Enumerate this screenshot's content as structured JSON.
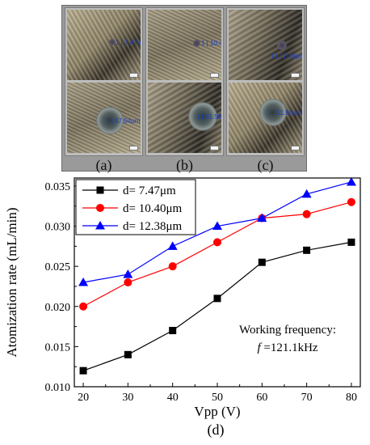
{
  "micrographs": [
    {
      "caption": "(a)",
      "top_label": "1 [ 7.47µm ]",
      "bottom_label": "1 [ 47.04µm ]"
    },
    {
      "caption": "(b)",
      "top_label": "1 [ 10.40µm ]",
      "bottom_label": "1 [ 51.50µm ]"
    },
    {
      "caption": "(c)",
      "top_label": "1 [ 12.38µm ]",
      "bottom_label": "1 [ 51.96µm ]"
    }
  ],
  "chart_data": {
    "type": "line",
    "x": [
      20,
      30,
      40,
      50,
      60,
      70,
      80
    ],
    "xlabel": "Vpp (V)",
    "ylabel": "Atomization rate (mL/min)",
    "xlim": [
      18,
      82
    ],
    "ylim": [
      0.01,
      0.036
    ],
    "xticks": [
      "20",
      "30",
      "40",
      "50",
      "60",
      "70",
      "80"
    ],
    "yticks": [
      "0.010",
      "0.015",
      "0.020",
      "0.025",
      "0.030",
      "0.035"
    ],
    "legend_placement": "top-left",
    "caption": "(d)",
    "annotation_line1": "Working frequency:",
    "annotation_line2_var": "f",
    "annotation_line2_value": " =121.1kHz",
    "series": [
      {
        "name": "d= 7.47μm",
        "marker": "square",
        "color": "#000000",
        "values": [
          0.012,
          0.014,
          0.017,
          0.021,
          0.0255,
          0.027,
          0.028
        ]
      },
      {
        "name": "d= 10.40μm",
        "marker": "circle",
        "color": "#ff0000",
        "values": [
          0.02,
          0.023,
          0.025,
          0.028,
          0.031,
          0.0315,
          0.033
        ]
      },
      {
        "name": "d= 12.38μm",
        "marker": "triangle",
        "color": "#0000ff",
        "values": [
          0.023,
          0.024,
          0.0275,
          0.03,
          0.031,
          0.034,
          0.0355
        ]
      }
    ]
  }
}
